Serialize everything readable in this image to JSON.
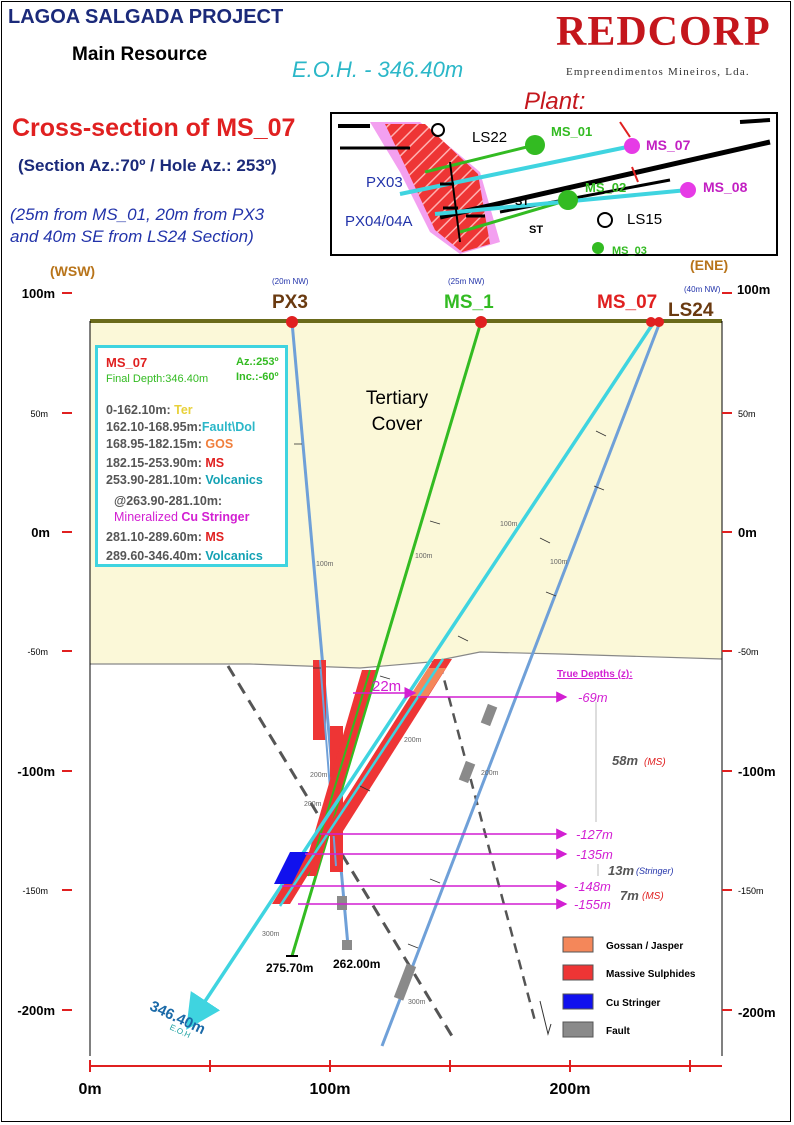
{
  "header": {
    "project": "LAGOA SALGADA PROJECT",
    "subtitle": "Main Resource",
    "eoh": "E.O.H. - 346.40m",
    "brand": "REDCORP",
    "brand_sub": "Empreendimentos Mineiros, Lda.",
    "plant_label": "Plant:"
  },
  "section": {
    "title": "Cross-section of MS_07",
    "azimuth": "(Section Az.:70º / Hole Az.: 253º)",
    "note_line1": "(25m from MS_01, 20m from PX3",
    "note_line2": "and 40m SE from LS24 Section)"
  },
  "plant_map": {
    "labels": {
      "ls22": "LS22",
      "ms01": "MS_01",
      "ms07": "MS_07",
      "px03": "PX03",
      "ms02": "MS_02",
      "ms08": "MS_08",
      "px04": "PX04/04A",
      "ls15": "LS15",
      "st1": "ST",
      "st2": "ST",
      "ms03": "MS_03"
    }
  },
  "axes": {
    "wsw": "(WSW)",
    "ene": "(ENE)",
    "y_left": [
      "100m",
      "50m",
      "0m",
      "-50m",
      "-100m",
      "-150m",
      "-200m"
    ],
    "y_right": [
      "100m",
      "50m",
      "0m",
      "-50m",
      "-100m",
      "-150m",
      "-200m"
    ],
    "x": [
      "0m",
      "100m",
      "200m"
    ]
  },
  "holes": {
    "px3": {
      "label": "PX3",
      "note": "(20m NW)",
      "depth": ""
    },
    "ms1": {
      "label": "MS_1",
      "note": "(25m NW)",
      "depth": "275.70m"
    },
    "ms07": {
      "label": "MS_07",
      "note": "",
      "depth": "346.40m",
      "eoh": "E.O.H"
    },
    "ls24": {
      "label": "LS24",
      "note": "(40m NW)",
      "depth": "262.00m"
    },
    "ticks": [
      "100m",
      "100m",
      "100m",
      "100m",
      "200m",
      "200m",
      "200m",
      "200m",
      "300m",
      "300m"
    ]
  },
  "geology": {
    "tertiary": "Tertiary",
    "cover": "Cover",
    "dist_22m": "22m"
  },
  "log": {
    "hole": "MS_07",
    "az": "Az.:253º",
    "depth": "Final Depth:346.40m",
    "inc": "Inc.:-60º",
    "rows": [
      {
        "range": "0-162.10m:",
        "unit": "Ter",
        "color": "#e8d13a"
      },
      {
        "range": "162.10-168.95m:",
        "unit": "Fault\\Dol",
        "color": "#2bb7c8"
      },
      {
        "range": "168.95-182.15m:",
        "unit": "GOS",
        "color": "#f07f3c"
      },
      {
        "range": "182.15-253.90m:",
        "unit": "MS",
        "color": "#e02020"
      },
      {
        "range": "253.90-281.10m:",
        "unit": "Volcanics",
        "color": "#14a2b4"
      },
      {
        "range": "@263.90-281.10m:",
        "unit": "",
        "color": "#555"
      },
      {
        "range": "Mineralized",
        "unit": "Cu Stringer",
        "color": "#d21fd2"
      },
      {
        "range": "281.10-289.60m:",
        "unit": "MS",
        "color": "#e02020"
      },
      {
        "range": "289.60-346.40m:",
        "unit": "Volcanics",
        "color": "#14a2b4"
      }
    ]
  },
  "true_depths": {
    "title": "True Depths (z):",
    "values": [
      "-69m",
      "-127m",
      "-135m",
      "-148m",
      "-155m"
    ],
    "thick_58": "58m",
    "thick_58_unit": "(MS)",
    "thick_13": "13m",
    "thick_13_unit": "(Stringer)",
    "thick_7": "7m",
    "thick_7_unit": "(MS)"
  },
  "legend": {
    "items": [
      {
        "label": "Gossan / Jasper",
        "color": "#f4875a"
      },
      {
        "label": "Massive Sulphides",
        "color": "#ee3535"
      },
      {
        "label": "Cu Stringer",
        "color": "#1111ee"
      },
      {
        "label": "Fault",
        "color": "#8a8a8a"
      }
    ]
  },
  "colors": {
    "cover": "#fbf8d8",
    "ms07_trace": "#3fd4e0",
    "ms1_trace": "#33bb22",
    "px3_trace": "#6fa0d8",
    "ms_red": "#ee3535",
    "accent_red": "#e02020",
    "navy": "#1b2a7a",
    "magenta": "#d21fd2"
  }
}
